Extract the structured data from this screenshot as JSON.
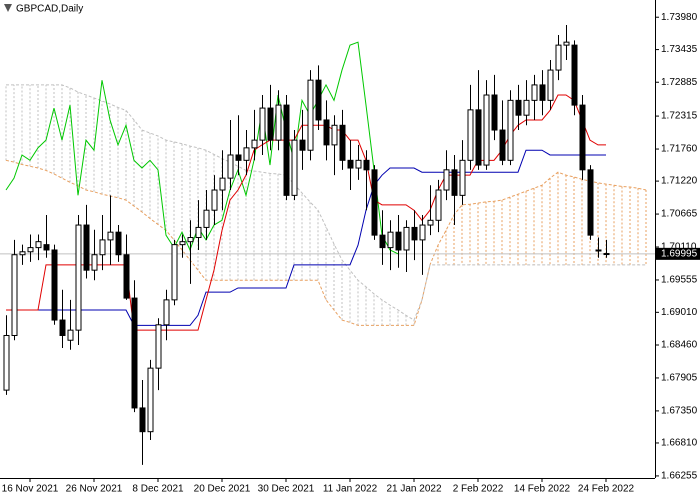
{
  "chart_data": {
    "type": "candlestick",
    "title": "GBPCAD,Daily",
    "categories": [
      null,
      null,
      null,
      "16 Nov 2021",
      null,
      null,
      null,
      null,
      null,
      null,
      null,
      "26 Nov 2021",
      null,
      null,
      null,
      null,
      null,
      null,
      null,
      "8 Dec 2021",
      null,
      null,
      null,
      null,
      null,
      null,
      null,
      "20 Dec 2021",
      null,
      null,
      null,
      null,
      null,
      null,
      null,
      "30 Dec 2021",
      null,
      null,
      null,
      null,
      null,
      null,
      null,
      "11 Jan 2022",
      null,
      null,
      null,
      null,
      null,
      null,
      null,
      "21 Jan 2022",
      null,
      null,
      null,
      null,
      null,
      null,
      null,
      "2 Feb 2022",
      null,
      null,
      null,
      null,
      null,
      null,
      null,
      "14 Feb 2022",
      null,
      null,
      null,
      null,
      null,
      null,
      null,
      "24 Feb 2022",
      null,
      null,
      null,
      null,
      null
    ],
    "open": [
      1.677,
      1.6862,
      1.6998,
      1.7003,
      1.701,
      1.7015,
      1.7006,
      1.6888,
      1.6854,
      1.6871,
      1.7048,
      1.6972,
      1.6998,
      1.7023,
      1.7036,
      1.6998,
      1.6925,
      1.674,
      1.67,
      1.6807,
      1.688,
      1.6922,
      1.7015,
      1.702,
      1.7027,
      1.7044,
      1.7073,
      1.7107,
      1.7127,
      1.7166,
      1.7157,
      1.7178,
      1.7191,
      1.7245,
      1.7191,
      1.725,
      1.7098,
      1.7191,
      1.7174,
      1.7292,
      1.7225,
      1.7183,
      1.7216,
      1.7157,
      1.7144,
      1.7157,
      1.7141,
      1.7031,
      1.701,
      1.7036,
      1.7006,
      1.7044,
      1.7023,
      1.7048,
      1.7056,
      1.7107,
      1.7141,
      1.7098,
      1.7157,
      1.7242,
      1.7149,
      1.7267,
      1.7208,
      1.7157,
      1.7258,
      1.7233,
      1.7258,
      1.7284,
      1.7258,
      1.7309,
      1.7351,
      1.7351,
      1.725,
      1.7141,
      1.7006,
      1.7,
      null,
      null,
      null,
      null,
      null
    ],
    "high": [
      1.6896,
      1.7023,
      1.7015,
      1.7032,
      1.7032,
      1.7065,
      1.7015,
      1.6939,
      1.6922,
      1.7065,
      1.7082,
      1.704,
      1.7065,
      1.7098,
      1.7048,
      1.7032,
      1.6955,
      1.6787,
      1.6821,
      1.6891,
      1.6939,
      1.7023,
      1.7032,
      1.7056,
      1.709,
      1.7107,
      1.7132,
      1.7174,
      1.7225,
      1.7233,
      1.7208,
      1.7242,
      1.7267,
      1.7284,
      1.7275,
      1.7267,
      1.7208,
      1.7242,
      1.7309,
      1.7317,
      1.7258,
      1.7233,
      1.7242,
      1.7191,
      1.7183,
      1.7174,
      1.7149,
      1.7073,
      1.7056,
      1.7065,
      1.7056,
      1.7073,
      1.7065,
      1.7115,
      1.7124,
      1.7174,
      1.7166,
      1.7191,
      1.7284,
      1.7309,
      1.7292,
      1.7301,
      1.7258,
      1.7275,
      1.7284,
      1.7292,
      1.7301,
      1.7309,
      1.7326,
      1.7368,
      1.7385,
      1.7359,
      1.7267,
      1.7149,
      1.7027,
      1.7023,
      null,
      null,
      null,
      null,
      null
    ],
    "low": [
      1.6762,
      1.6854,
      1.6981,
      1.6986,
      1.6989,
      1.6993,
      1.688,
      1.6841,
      1.6838,
      1.6846,
      1.6958,
      1.6955,
      1.6972,
      1.6981,
      1.6986,
      1.6922,
      1.6733,
      1.6644,
      1.6686,
      1.677,
      1.6854,
      1.6913,
      1.6993,
      1.6949,
      1.7006,
      1.7023,
      1.7048,
      1.7073,
      1.7107,
      1.7132,
      1.7132,
      1.7157,
      1.7166,
      1.7174,
      1.7174,
      1.709,
      1.709,
      1.7141,
      1.7157,
      1.7208,
      1.7157,
      1.7132,
      1.7141,
      1.7107,
      1.7124,
      1.7073,
      1.7023,
      1.6981,
      1.6972,
      1.6976,
      1.6969,
      1.6989,
      1.6964,
      1.7031,
      1.7036,
      1.709,
      1.7048,
      1.7082,
      1.7141,
      1.7141,
      1.7141,
      1.7191,
      1.7149,
      1.7149,
      1.7208,
      1.7216,
      1.7225,
      1.7233,
      1.7242,
      1.7292,
      1.7326,
      1.7233,
      1.7124,
      1.7023,
      1.6993,
      1.6993,
      null,
      null,
      null,
      null,
      null
    ],
    "close": [
      1.6862,
      1.6998,
      1.7003,
      1.701,
      1.702,
      1.7006,
      1.6888,
      1.6862,
      1.6871,
      1.7048,
      1.6972,
      1.6998,
      1.7023,
      1.7036,
      1.6998,
      1.6925,
      1.674,
      1.67,
      1.6807,
      1.688,
      1.6922,
      1.7015,
      1.702,
      1.7027,
      1.7044,
      1.7073,
      1.7107,
      1.7127,
      1.7166,
      1.7157,
      1.7178,
      1.7191,
      1.7245,
      1.7191,
      1.725,
      1.7098,
      1.7191,
      1.7174,
      1.7292,
      1.7225,
      1.7183,
      1.7216,
      1.7157,
      1.7144,
      1.7157,
      1.7141,
      1.7031,
      1.701,
      1.7036,
      1.7006,
      1.7044,
      1.7023,
      1.7048,
      1.7056,
      1.7107,
      1.7141,
      1.7098,
      1.7157,
      1.7242,
      1.7149,
      1.7267,
      1.7208,
      1.7157,
      1.7258,
      1.7233,
      1.7258,
      1.7284,
      1.7258,
      1.7309,
      1.7351,
      1.7356,
      1.725,
      1.7141,
      1.7031,
      1.7006,
      1.69995,
      null,
      null,
      null,
      null,
      null
    ],
    "tenkan": {
      "color": "#e00000",
      "values": [
        1.6905,
        1.6905,
        1.6905,
        1.6905,
        1.6905,
        1.6981,
        1.6981,
        1.6981,
        1.6981,
        1.6981,
        1.6981,
        1.6981,
        1.6981,
        1.6981,
        1.6981,
        1.6981,
        1.6871,
        1.6871,
        1.6871,
        1.6871,
        1.6871,
        1.6871,
        1.6871,
        1.6871,
        1.6871,
        1.6922,
        1.6972,
        1.7039,
        1.709,
        1.7107,
        1.7132,
        1.7174,
        1.7183,
        1.7191,
        1.7191,
        1.7191,
        1.7191,
        1.7216,
        1.7216,
        1.7216,
        1.7216,
        1.7208,
        1.7208,
        1.7191,
        1.7191,
        1.7157,
        1.709,
        1.7082,
        1.7082,
        1.7082,
        1.7082,
        1.7073,
        1.7056,
        1.7073,
        1.7107,
        1.7132,
        1.7132,
        1.7132,
        1.7132,
        1.7157,
        1.7157,
        1.7157,
        1.7174,
        1.7199,
        1.7216,
        1.7225,
        1.7225,
        1.7225,
        1.7241,
        1.7267,
        1.7267,
        1.7258,
        1.7225,
        1.7191,
        1.7183,
        1.7183,
        null,
        null,
        null,
        null,
        null
      ]
    },
    "kijun": {
      "color": "#0000b0",
      "values": [
        1.6905,
        1.6905,
        1.6905,
        1.6905,
        1.6905,
        1.6905,
        1.6905,
        1.6905,
        1.6905,
        1.6905,
        1.6905,
        1.6905,
        1.6905,
        1.6905,
        1.6905,
        1.6905,
        1.6879,
        1.6879,
        1.6879,
        1.6879,
        1.6879,
        1.6879,
        1.6879,
        1.6879,
        1.6896,
        1.6935,
        1.6935,
        1.6935,
        1.6935,
        1.6942,
        1.6942,
        1.6942,
        1.6942,
        1.6942,
        1.6942,
        1.6942,
        1.6981,
        1.6981,
        1.6981,
        1.6981,
        1.6981,
        1.6981,
        1.6981,
        1.6981,
        1.7014,
        1.7073,
        1.7115,
        1.7132,
        1.7144,
        1.7144,
        1.7144,
        1.7144,
        1.7137,
        1.7137,
        1.7137,
        1.7137,
        1.7137,
        1.7137,
        1.7137,
        1.7137,
        1.7137,
        1.7137,
        1.7137,
        1.7137,
        1.7137,
        1.7174,
        1.7174,
        1.7174,
        1.7166,
        1.7166,
        1.7166,
        1.7166,
        1.7166,
        1.7166,
        1.7166,
        1.7166,
        null,
        null,
        null,
        null,
        null
      ]
    },
    "chikou": {
      "color": "#00c800",
      "values": [
        1.7107,
        1.7127,
        1.7166,
        1.7157,
        1.7178,
        1.7191,
        1.7245,
        1.7191,
        1.725,
        1.7098,
        1.7191,
        1.7174,
        1.7292,
        1.7225,
        1.7183,
        1.7216,
        1.7157,
        1.7144,
        1.7157,
        1.7141,
        1.7031,
        1.701,
        1.7036,
        1.7006,
        1.7044,
        1.7023,
        1.7048,
        1.7056,
        1.7107,
        1.7141,
        1.7098,
        1.7157,
        1.7242,
        1.7149,
        1.7267,
        1.7208,
        1.7157,
        1.7258,
        1.7233,
        1.7258,
        1.7284,
        1.7258,
        1.7309,
        1.7351,
        1.7356,
        1.725,
        1.7141,
        1.7031,
        1.7006,
        1.69995,
        null,
        null,
        null,
        null,
        null,
        null,
        null,
        null,
        null,
        null,
        null,
        null,
        null,
        null,
        null,
        null,
        null,
        null,
        null,
        null,
        null,
        null,
        null,
        null,
        null,
        null,
        null,
        null,
        null,
        null,
        null
      ]
    },
    "span_a": {
      "color": "#e8a060",
      "values": [
        1.7157,
        1.7154,
        1.715,
        1.7147,
        1.7144,
        1.714,
        1.7134,
        1.7127,
        1.712,
        1.7114,
        1.7107,
        1.7104,
        1.71,
        1.7097,
        1.7094,
        1.709,
        1.708,
        1.707,
        1.7059,
        1.7049,
        1.7039,
        1.7023,
        1.7006,
        1.6989,
        1.6972,
        1.6955,
        1.6955,
        1.6955,
        1.6955,
        1.6955,
        1.6955,
        1.6955,
        1.6955,
        1.6955,
        1.6955,
        1.6955,
        1.6955,
        1.6955,
        1.6955,
        1.6955,
        1.6922,
        1.6905,
        1.6888,
        1.6884,
        1.6879,
        1.6879,
        1.6879,
        1.6879,
        1.6879,
        1.6879,
        1.6879,
        1.6879,
        1.6922,
        1.6981,
        1.7014,
        1.7039,
        1.7065,
        1.7082,
        1.7083,
        1.7085,
        1.7087,
        1.7088,
        1.709,
        1.7095,
        1.71,
        1.7105,
        1.711,
        1.7115,
        1.7127,
        1.7137,
        1.7132,
        1.7129,
        1.7125,
        1.7122,
        1.7119,
        1.7117,
        1.7115,
        1.7113,
        1.7112,
        1.711,
        1.7107
      ]
    },
    "span_b": {
      "color": "#c0c0c0",
      "values": [
        1.7284,
        1.7284,
        1.7284,
        1.7284,
        1.7284,
        1.7284,
        1.7284,
        1.7284,
        1.7279,
        1.7272,
        1.7267,
        1.7262,
        1.7257,
        1.7252,
        1.7246,
        1.7241,
        1.7225,
        1.7208,
        1.7203,
        1.7198,
        1.7191,
        1.7188,
        1.7185,
        1.7181,
        1.7178,
        1.7174,
        1.7167,
        1.716,
        1.7154,
        1.7147,
        1.714,
        1.7139,
        1.7137,
        1.7135,
        1.7134,
        1.7132,
        1.7117,
        1.7102,
        1.7087,
        1.7073,
        1.7045,
        1.7016,
        1.6989,
        1.6972,
        1.6955,
        1.6944,
        1.6932,
        1.6922,
        1.6913,
        1.6905,
        1.6896,
        1.6888,
        1.6922,
        1.6981,
        1.6981,
        1.6981,
        1.6981,
        1.6981,
        1.6981,
        1.6981,
        1.6981,
        1.6981,
        1.6981,
        1.6981,
        1.6981,
        1.6981,
        1.6981,
        1.6981,
        1.6981,
        1.6981,
        1.6981,
        1.6981,
        1.6981,
        1.6981,
        1.6981,
        1.6981,
        1.6981,
        1.6981,
        1.6981,
        1.6981,
        1.6981
      ]
    },
    "ylim": [
      1.6622,
      1.7427
    ],
    "yticks": [
      {
        "value": 1.7398,
        "label": "1.73980"
      },
      1.73435,
      1.72885,
      1.72315,
      {
        "value": 1.7176,
        "label": "1.71760"
      },
      {
        "value": 1.7122,
        "label": "1.71220"
      },
      1.70665,
      {
        "value": 1.7011,
        "label": "1.70110"
      },
      1.69555,
      {
        "value": 1.6901,
        "label": "1.69010"
      },
      {
        "value": 1.6846,
        "label": "1.68460"
      },
      1.67905,
      {
        "value": 1.6735,
        "label": "1.67350"
      },
      {
        "value": 1.6681,
        "label": "1.66810"
      },
      1.66255
    ],
    "candle_color": "#000000",
    "bull_fill": "#ffffff",
    "bear_fill": "#000000"
  }
}
